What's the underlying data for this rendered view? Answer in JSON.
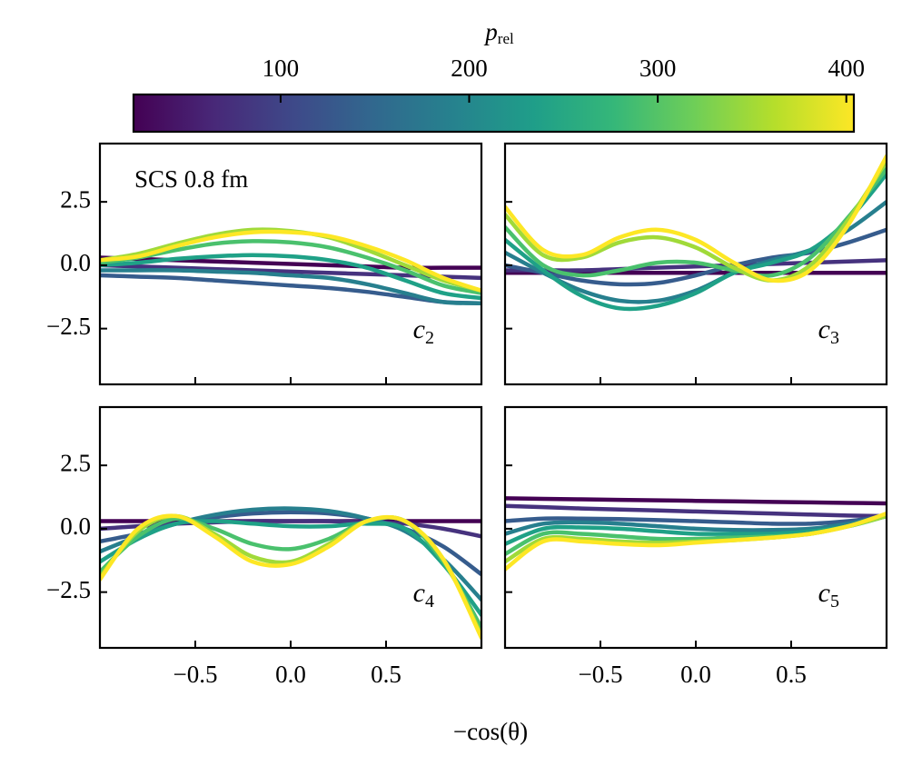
{
  "colorbar": {
    "label": "p",
    "label_sub": "rel",
    "lim": [
      22,
      404
    ],
    "ticks": [
      100,
      200,
      300,
      400
    ],
    "colors": [
      "#440154",
      "#482878",
      "#3e4989",
      "#31688e",
      "#26828e",
      "#1f9e89",
      "#35b779",
      "#6ece58",
      "#b5de2b",
      "#fde725"
    ]
  },
  "annotation": "SCS 0.8 fm",
  "xlabel": "−cos(θ)",
  "chart_data": [
    {
      "type": "line",
      "label": "c",
      "label_sub": "2",
      "xlim": [
        -1,
        1
      ],
      "ylim": [
        -4.7,
        4.8
      ],
      "xticks": [
        -0.5,
        0,
        0.5
      ],
      "yticks": [
        {
          "value": -2.5,
          "label": "−2.5"
        },
        {
          "value": 0,
          "label": "0.0"
        },
        {
          "value": 2.5,
          "label": "2.5"
        }
      ],
      "x": [
        -1,
        -0.8,
        -0.6,
        -0.4,
        -0.2,
        0,
        0.2,
        0.4,
        0.6,
        0.8,
        1
      ],
      "series": [
        {
          "color": "#440154",
          "values": [
            0.3,
            0.25,
            0.2,
            0.15,
            0.1,
            0.05,
            0,
            -0.05,
            -0.1,
            -0.1,
            -0.1
          ]
        },
        {
          "color": "#46327e",
          "values": [
            0,
            -0.05,
            -0.1,
            -0.15,
            -0.2,
            -0.25,
            -0.3,
            -0.35,
            -0.4,
            -0.45,
            -0.5
          ]
        },
        {
          "color": "#365c8d",
          "values": [
            -0.4,
            -0.45,
            -0.5,
            -0.6,
            -0.7,
            -0.8,
            -0.9,
            -1.05,
            -1.25,
            -1.45,
            -1.5
          ]
        },
        {
          "color": "#277f8e",
          "values": [
            -0.2,
            -0.2,
            -0.2,
            -0.25,
            -0.3,
            -0.4,
            -0.5,
            -0.75,
            -1.1,
            -1.45,
            -1.5
          ]
        },
        {
          "color": "#1fa187",
          "values": [
            0,
            0.1,
            0.25,
            0.35,
            0.4,
            0.35,
            0.2,
            -0.1,
            -0.6,
            -1.1,
            -1.3
          ]
        },
        {
          "color": "#4ac16d",
          "values": [
            0.1,
            0.3,
            0.6,
            0.85,
            0.95,
            0.9,
            0.7,
            0.3,
            -0.2,
            -0.8,
            -1.1
          ]
        },
        {
          "color": "#a0da39",
          "values": [
            0.2,
            0.45,
            0.85,
            1.2,
            1.4,
            1.35,
            1.1,
            0.6,
            0,
            -0.6,
            -1.0
          ]
        },
        {
          "color": "#fde725",
          "values": [
            0.2,
            0.35,
            0.75,
            1.1,
            1.3,
            1.3,
            1.15,
            0.75,
            0.2,
            -0.5,
            -1.0
          ]
        }
      ]
    },
    {
      "type": "line",
      "label": "c",
      "label_sub": "3",
      "xlim": [
        -1,
        1
      ],
      "ylim": [
        -4.7,
        4.8
      ],
      "xticks": [
        -0.5,
        0,
        0.5
      ],
      "yticks": [
        -2.5,
        0,
        2.5
      ],
      "x": [
        -1,
        -0.8,
        -0.6,
        -0.4,
        -0.2,
        0,
        0.2,
        0.4,
        0.6,
        0.8,
        1
      ],
      "series": [
        {
          "color": "#440154",
          "values": [
            -0.3,
            -0.3,
            -0.3,
            -0.3,
            -0.3,
            -0.3,
            -0.3,
            -0.3,
            -0.3,
            -0.3,
            -0.3
          ]
        },
        {
          "color": "#46327e",
          "values": [
            -0.2,
            -0.2,
            -0.2,
            -0.15,
            -0.1,
            -0.05,
            0,
            0.05,
            0.1,
            0.15,
            0.2
          ]
        },
        {
          "color": "#365c8d",
          "values": [
            0,
            -0.3,
            -0.6,
            -0.75,
            -0.7,
            -0.4,
            0,
            0.3,
            0.5,
            0.9,
            1.4
          ]
        },
        {
          "color": "#277f8e",
          "values": [
            0.5,
            -0.3,
            -1.0,
            -1.4,
            -1.4,
            -1.0,
            -0.3,
            0.2,
            0.6,
            1.4,
            2.5
          ]
        },
        {
          "color": "#1fa187",
          "values": [
            1.0,
            -0.2,
            -1.2,
            -1.7,
            -1.6,
            -1.1,
            -0.3,
            0.1,
            0.6,
            1.8,
            3.6
          ]
        },
        {
          "color": "#4ac16d",
          "values": [
            1.5,
            0,
            -0.4,
            -0.2,
            0.1,
            0.1,
            -0.2,
            -0.4,
            0.3,
            1.9,
            3.8
          ]
        },
        {
          "color": "#a0da39",
          "values": [
            2.0,
            0.4,
            0.3,
            0.9,
            1.1,
            0.7,
            -0.1,
            -0.6,
            0,
            1.8,
            4.1
          ]
        },
        {
          "color": "#fde725",
          "values": [
            2.3,
            0.6,
            0.4,
            1.1,
            1.4,
            1.0,
            0.1,
            -0.6,
            -0.2,
            1.6,
            4.3
          ]
        }
      ]
    },
    {
      "type": "line",
      "label": "c",
      "label_sub": "4",
      "xlim": [
        -1,
        1
      ],
      "ylim": [
        -4.7,
        4.8
      ],
      "xticks": [
        {
          "value": -0.5,
          "label": "−0.5"
        },
        {
          "value": 0,
          "label": "0.0"
        },
        {
          "value": 0.5,
          "label": "0.5"
        }
      ],
      "yticks": [
        {
          "value": -2.5,
          "label": "−2.5"
        },
        {
          "value": 0,
          "label": "0.0"
        },
        {
          "value": 2.5,
          "label": "2.5"
        }
      ],
      "x": [
        -1,
        -0.8,
        -0.6,
        -0.4,
        -0.2,
        0,
        0.2,
        0.4,
        0.6,
        0.8,
        1
      ],
      "series": [
        {
          "color": "#440154",
          "values": [
            0.3,
            0.3,
            0.3,
            0.3,
            0.3,
            0.3,
            0.3,
            0.3,
            0.3,
            0.3,
            0.3
          ]
        },
        {
          "color": "#46327e",
          "values": [
            0,
            0.1,
            0.2,
            0.25,
            0.3,
            0.3,
            0.3,
            0.25,
            0.2,
            0,
            -0.3
          ]
        },
        {
          "color": "#365c8d",
          "values": [
            -0.5,
            -0.2,
            0.2,
            0.45,
            0.6,
            0.65,
            0.6,
            0.4,
            0,
            -0.7,
            -1.8
          ]
        },
        {
          "color": "#277f8e",
          "values": [
            -0.9,
            -0.3,
            0.2,
            0.55,
            0.75,
            0.8,
            0.7,
            0.4,
            -0.1,
            -1.2,
            -2.8
          ]
        },
        {
          "color": "#1fa187",
          "values": [
            -1.3,
            -0.4,
            0.2,
            0.3,
            0.2,
            0.1,
            0.1,
            0.2,
            0,
            -1.4,
            -3.4
          ]
        },
        {
          "color": "#4ac16d",
          "values": [
            -1.7,
            -0.3,
            0.4,
            0,
            -0.6,
            -0.8,
            -0.4,
            0.3,
            0.3,
            -1.3,
            -3.9
          ]
        },
        {
          "color": "#a0da39",
          "values": [
            -1.9,
            -0.1,
            0.5,
            -0.2,
            -1.1,
            -1.3,
            -0.6,
            0.3,
            0.3,
            -1.2,
            -4.2
          ]
        },
        {
          "color": "#fde725",
          "values": [
            -2.0,
            0,
            0.5,
            -0.3,
            -1.3,
            -1.4,
            -0.7,
            0.3,
            0.3,
            -1.2,
            -4.3
          ]
        }
      ]
    },
    {
      "type": "line",
      "label": "c",
      "label_sub": "5",
      "xlim": [
        -1,
        1
      ],
      "ylim": [
        -4.7,
        4.8
      ],
      "xticks": [
        {
          "value": -0.5,
          "label": "−0.5"
        },
        {
          "value": 0,
          "label": "0.0"
        },
        {
          "value": 0.5,
          "label": "0.5"
        }
      ],
      "yticks": [
        -2.5,
        0,
        2.5
      ],
      "x": [
        -1,
        -0.8,
        -0.6,
        -0.4,
        -0.2,
        0,
        0.2,
        0.4,
        0.6,
        0.8,
        1
      ],
      "series": [
        {
          "color": "#440154",
          "values": [
            1.2,
            1.18,
            1.16,
            1.14,
            1.12,
            1.1,
            1.08,
            1.06,
            1.04,
            1.02,
            1.0
          ]
        },
        {
          "color": "#46327e",
          "values": [
            0.9,
            0.85,
            0.8,
            0.76,
            0.72,
            0.68,
            0.64,
            0.6,
            0.56,
            0.52,
            0.5
          ]
        },
        {
          "color": "#365c8d",
          "values": [
            0.3,
            0.4,
            0.4,
            0.38,
            0.34,
            0.3,
            0.25,
            0.2,
            0.2,
            0.3,
            0.5
          ]
        },
        {
          "color": "#277f8e",
          "values": [
            -0.2,
            0.2,
            0.25,
            0.2,
            0.1,
            0,
            -0.05,
            -0.05,
            0,
            0.2,
            0.5
          ]
        },
        {
          "color": "#1fa187",
          "values": [
            -0.6,
            0,
            0.05,
            0,
            -0.1,
            -0.2,
            -0.2,
            -0.2,
            -0.1,
            0.1,
            0.5
          ]
        },
        {
          "color": "#4ac16d",
          "values": [
            -1.0,
            -0.2,
            -0.2,
            -0.3,
            -0.4,
            -0.4,
            -0.35,
            -0.3,
            -0.2,
            0.1,
            0.5
          ]
        },
        {
          "color": "#a0da39",
          "values": [
            -1.3,
            -0.4,
            -0.4,
            -0.5,
            -0.55,
            -0.5,
            -0.45,
            -0.35,
            -0.2,
            0.1,
            0.5
          ]
        },
        {
          "color": "#fde725",
          "values": [
            -1.6,
            -0.5,
            -0.5,
            -0.6,
            -0.65,
            -0.55,
            -0.45,
            -0.35,
            -0.2,
            0.1,
            0.6
          ]
        }
      ]
    }
  ]
}
